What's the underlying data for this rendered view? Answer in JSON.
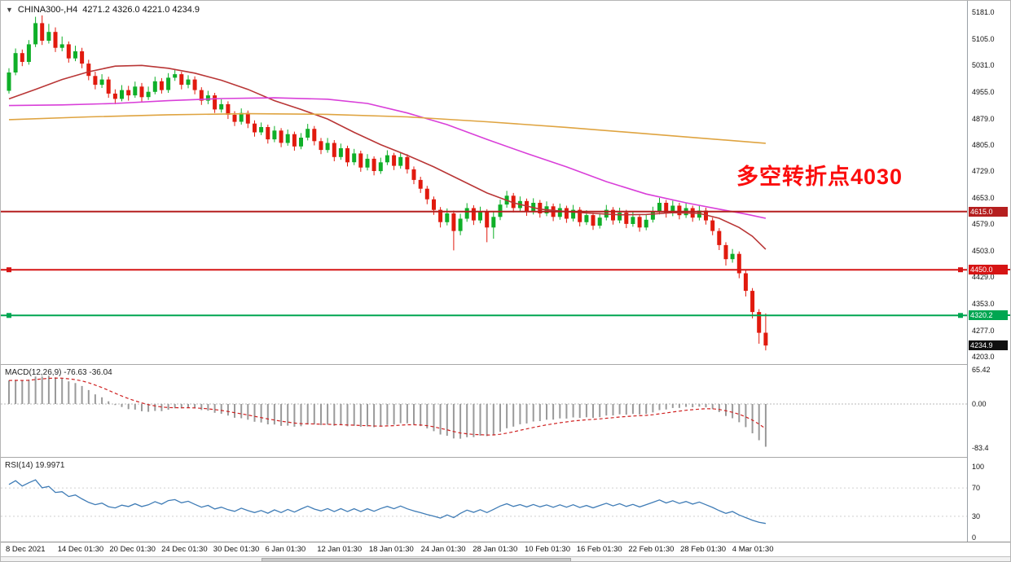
{
  "header": {
    "symbol_timeframe": "CHINA300-,H4",
    "ohlc_values": "4271.2 4326.0 4221.0 4234.9",
    "menu_icon_glyph": "▼"
  },
  "chart_data": {
    "type": "candlestick",
    "title": "CHINA300-,H4",
    "symbol": "CHINA300-",
    "timeframe": "H4",
    "current_bar": {
      "open": 4271.2,
      "high": 4326.0,
      "low": 4221.0,
      "close": 4234.9
    },
    "price_axis": {
      "ticks": [
        "5181.0",
        "5105.0",
        "5031.0",
        "4955.0",
        "4879.0",
        "4805.0",
        "4729.0",
        "4653.0",
        "4579.0",
        "4503.0",
        "4429.0",
        "4353.0",
        "4277.0",
        "4203.0"
      ]
    },
    "time_axis": {
      "labels": [
        "8 Dec 2021",
        "14 Dec 01:30",
        "20 Dec 01:30",
        "24 Dec 01:30",
        "30 Dec 01:30",
        "6 Jan 01:30",
        "12 Jan 01:30",
        "18 Jan 01:30",
        "24 Jan 01:30",
        "28 Jan 01:30",
        "10 Feb 01:30",
        "16 Feb 01:30",
        "22 Feb 01:30",
        "28 Feb 01:30",
        "4 Mar 01:30"
      ]
    },
    "candles": [
      [
        4958,
        5022,
        4950,
        5010
      ],
      [
        5010,
        5078,
        5002,
        5065
      ],
      [
        5065,
        5075,
        5028,
        5040
      ],
      [
        5040,
        5102,
        5032,
        5090
      ],
      [
        5090,
        5168,
        5082,
        5150
      ],
      [
        5150,
        5172,
        5088,
        5100
      ],
      [
        5100,
        5148,
        5092,
        5125
      ],
      [
        5125,
        5138,
        5068,
        5080
      ],
      [
        5080,
        5112,
        5070,
        5090
      ],
      [
        5090,
        5098,
        5038,
        5050
      ],
      [
        5050,
        5086,
        5042,
        5070
      ],
      [
        5070,
        5080,
        5022,
        5035
      ],
      [
        5035,
        5046,
        4988,
        5000
      ],
      [
        5000,
        5012,
        4962,
        4975
      ],
      [
        4975,
        5005,
        4966,
        4990
      ],
      [
        4990,
        4998,
        4938,
        4950
      ],
      [
        4950,
        4962,
        4920,
        4935
      ],
      [
        4935,
        4974,
        4928,
        4960
      ],
      [
        4960,
        4972,
        4930,
        4945
      ],
      [
        4945,
        4984,
        4938,
        4970
      ],
      [
        4970,
        4980,
        4926,
        4940
      ],
      [
        4940,
        4970,
        4932,
        4955
      ],
      [
        4955,
        4998,
        4948,
        4985
      ],
      [
        4985,
        4994,
        4950,
        4960
      ],
      [
        4960,
        5008,
        4952,
        4995
      ],
      [
        4995,
        5018,
        4986,
        5005
      ],
      [
        5005,
        5012,
        4962,
        4975
      ],
      [
        4975,
        5002,
        4965,
        4990
      ],
      [
        4990,
        4999,
        4948,
        4960
      ],
      [
        4960,
        4968,
        4918,
        4930
      ],
      [
        4930,
        4958,
        4920,
        4945
      ],
      [
        4945,
        4952,
        4895,
        4905
      ],
      [
        4905,
        4934,
        4896,
        4920
      ],
      [
        4920,
        4928,
        4878,
        4890
      ],
      [
        4890,
        4900,
        4858,
        4870
      ],
      [
        4870,
        4908,
        4862,
        4895
      ],
      [
        4895,
        4902,
        4852,
        4865
      ],
      [
        4865,
        4874,
        4828,
        4840
      ],
      [
        4840,
        4868,
        4832,
        4855
      ],
      [
        4855,
        4862,
        4808,
        4820
      ],
      [
        4820,
        4858,
        4812,
        4845
      ],
      [
        4845,
        4852,
        4798,
        4810
      ],
      [
        4810,
        4848,
        4802,
        4835
      ],
      [
        4835,
        4842,
        4788,
        4800
      ],
      [
        4800,
        4838,
        4792,
        4825
      ],
      [
        4825,
        4864,
        4817,
        4850
      ],
      [
        4850,
        4858,
        4803,
        4815
      ],
      [
        4815,
        4824,
        4778,
        4790
      ],
      [
        4790,
        4824,
        4782,
        4810
      ],
      [
        4810,
        4818,
        4758,
        4770
      ],
      [
        4770,
        4808,
        4762,
        4795
      ],
      [
        4795,
        4802,
        4743,
        4755
      ],
      [
        4755,
        4793,
        4747,
        4780
      ],
      [
        4780,
        4788,
        4728,
        4740
      ],
      [
        4740,
        4778,
        4732,
        4765
      ],
      [
        4765,
        4772,
        4718,
        4730
      ],
      [
        4730,
        4768,
        4722,
        4755
      ],
      [
        4755,
        4789,
        4747,
        4775
      ],
      [
        4775,
        4782,
        4733,
        4745
      ],
      [
        4745,
        4783,
        4737,
        4770
      ],
      [
        4770,
        4778,
        4723,
        4735
      ],
      [
        4735,
        4743,
        4693,
        4705
      ],
      [
        4705,
        4714,
        4668,
        4680
      ],
      [
        4680,
        4688,
        4636,
        4650
      ],
      [
        4650,
        4658,
        4606,
        4620
      ],
      [
        4620,
        4628,
        4570,
        4585
      ],
      [
        4585,
        4624,
        4576,
        4610
      ],
      [
        4610,
        4618,
        4505,
        4560
      ],
      [
        4560,
        4609,
        4548,
        4595
      ],
      [
        4595,
        4639,
        4586,
        4625
      ],
      [
        4625,
        4633,
        4577,
        4590
      ],
      [
        4590,
        4629,
        4582,
        4615
      ],
      [
        4615,
        4622,
        4528,
        4570
      ],
      [
        4570,
        4614,
        4538,
        4600
      ],
      [
        4600,
        4649,
        4591,
        4635
      ],
      [
        4635,
        4674,
        4626,
        4660
      ],
      [
        4660,
        4668,
        4613,
        4625
      ],
      [
        4625,
        4658,
        4616,
        4645
      ],
      [
        4645,
        4652,
        4603,
        4615
      ],
      [
        4615,
        4653,
        4607,
        4640
      ],
      [
        4640,
        4648,
        4598,
        4610
      ],
      [
        4610,
        4644,
        4602,
        4630
      ],
      [
        4630,
        4638,
        4588,
        4600
      ],
      [
        4600,
        4638,
        4592,
        4625
      ],
      [
        4625,
        4632,
        4583,
        4595
      ],
      [
        4595,
        4634,
        4587,
        4620
      ],
      [
        4620,
        4628,
        4573,
        4585
      ],
      [
        4585,
        4619,
        4577,
        4605
      ],
      [
        4605,
        4612,
        4563,
        4575
      ],
      [
        4575,
        4611,
        4567,
        4598
      ],
      [
        4598,
        4634,
        4590,
        4620
      ],
      [
        4620,
        4628,
        4578,
        4590
      ],
      [
        4590,
        4626,
        4582,
        4612
      ],
      [
        4612,
        4620,
        4568,
        4580
      ],
      [
        4580,
        4614,
        4572,
        4600
      ],
      [
        4600,
        4608,
        4558,
        4570
      ],
      [
        4570,
        4606,
        4562,
        4592
      ],
      [
        4592,
        4629,
        4584,
        4615
      ],
      [
        4615,
        4654,
        4607,
        4640
      ],
      [
        4640,
        4648,
        4598,
        4610
      ],
      [
        4610,
        4646,
        4602,
        4632
      ],
      [
        4632,
        4640,
        4593,
        4605
      ],
      [
        4605,
        4639,
        4597,
        4625
      ],
      [
        4625,
        4632,
        4586,
        4598
      ],
      [
        4598,
        4632,
        4590,
        4618
      ],
      [
        4618,
        4626,
        4578,
        4590
      ],
      [
        4590,
        4598,
        4548,
        4560
      ],
      [
        4560,
        4568,
        4506,
        4520
      ],
      [
        4520,
        4528,
        4462,
        4480
      ],
      [
        4480,
        4509,
        4470,
        4495
      ],
      [
        4495,
        4502,
        4426,
        4440
      ],
      [
        4440,
        4448,
        4374,
        4390
      ],
      [
        4390,
        4398,
        4312,
        4330
      ],
      [
        4330,
        4338,
        4240,
        4271
      ],
      [
        4271.2,
        4326.0,
        4221.0,
        4234.9
      ]
    ],
    "moving_averages": [
      {
        "name": "ma-fast-red-line",
        "color": "#b93636",
        "points": [
          [
            0,
            4935
          ],
          [
            4,
            4962
          ],
          [
            8,
            4990
          ],
          [
            12,
            5012
          ],
          [
            16,
            5028
          ],
          [
            20,
            5030
          ],
          [
            24,
            5022
          ],
          [
            28,
            5008
          ],
          [
            32,
            4988
          ],
          [
            36,
            4962
          ],
          [
            40,
            4930
          ],
          [
            44,
            4905
          ],
          [
            48,
            4878
          ],
          [
            52,
            4840
          ],
          [
            56,
            4805
          ],
          [
            60,
            4775
          ],
          [
            64,
            4742
          ],
          [
            68,
            4705
          ],
          [
            72,
            4668
          ],
          [
            76,
            4640
          ],
          [
            80,
            4622
          ],
          [
            84,
            4615
          ],
          [
            88,
            4610
          ],
          [
            92,
            4606
          ],
          [
            96,
            4607
          ],
          [
            100,
            4612
          ],
          [
            104,
            4610
          ],
          [
            107,
            4596
          ],
          [
            110,
            4570
          ],
          [
            112,
            4545
          ],
          [
            114,
            4508
          ]
        ]
      },
      {
        "name": "ma-mid-magenta-line",
        "color": "#d93fd9",
        "points": [
          [
            0,
            4916
          ],
          [
            8,
            4918
          ],
          [
            16,
            4922
          ],
          [
            24,
            4930
          ],
          [
            32,
            4936
          ],
          [
            40,
            4938
          ],
          [
            48,
            4934
          ],
          [
            54,
            4922
          ],
          [
            60,
            4895
          ],
          [
            66,
            4862
          ],
          [
            72,
            4820
          ],
          [
            78,
            4780
          ],
          [
            84,
            4742
          ],
          [
            90,
            4700
          ],
          [
            96,
            4665
          ],
          [
            102,
            4640
          ],
          [
            107,
            4622
          ],
          [
            111,
            4608
          ],
          [
            114,
            4596
          ]
        ]
      },
      {
        "name": "ma-slow-orange-line",
        "color": "#dfa441",
        "points": [
          [
            0,
            4876
          ],
          [
            12,
            4884
          ],
          [
            24,
            4890
          ],
          [
            36,
            4893
          ],
          [
            48,
            4891
          ],
          [
            60,
            4884
          ],
          [
            72,
            4870
          ],
          [
            84,
            4854
          ],
          [
            96,
            4836
          ],
          [
            104,
            4824
          ],
          [
            110,
            4815
          ],
          [
            114,
            4809
          ]
        ]
      }
    ],
    "horizontal_lines": [
      {
        "price": 4615.0,
        "tag": "4615.0",
        "color": "#b51f1f",
        "handles": false
      },
      {
        "price": 4450.0,
        "tag": "4450.0",
        "color": "#d61414",
        "handles": true
      },
      {
        "price": 4320.2,
        "tag": "4320.2",
        "color": "#00a651",
        "handles": true
      }
    ],
    "current_price": {
      "value": 4234.9,
      "tag": "4234.9",
      "color": "#101010"
    },
    "annotation": {
      "text": "多空转折点4030",
      "color": "#fb0d0d"
    },
    "indicators": [
      {
        "name": "MACD",
        "label": "MACD(12,26,9) -76.63 -36.04",
        "params": [
          12,
          26,
          9
        ],
        "main_value": -76.63,
        "signal_value": -36.04,
        "scale_ticks": [
          "65.42",
          "0.00",
          "-83.4"
        ],
        "scale_values": [
          65.42,
          0,
          -83.4
        ],
        "histogram_color": "#9a9a9a",
        "signal_color": "#cf2020"
      },
      {
        "name": "RSI",
        "label": "RSI(14) 19.9971",
        "period": 14,
        "value": 19.9971,
        "scale_ticks": [
          "100",
          "70",
          "30",
          "0"
        ],
        "scale_values": [
          100,
          70,
          30,
          0
        ],
        "levels": [
          70,
          30
        ],
        "line_color": "#3f7cb6"
      }
    ],
    "colors": {
      "up": "#0faf28",
      "down": "#e11a0e",
      "background": "#ffffff"
    }
  }
}
